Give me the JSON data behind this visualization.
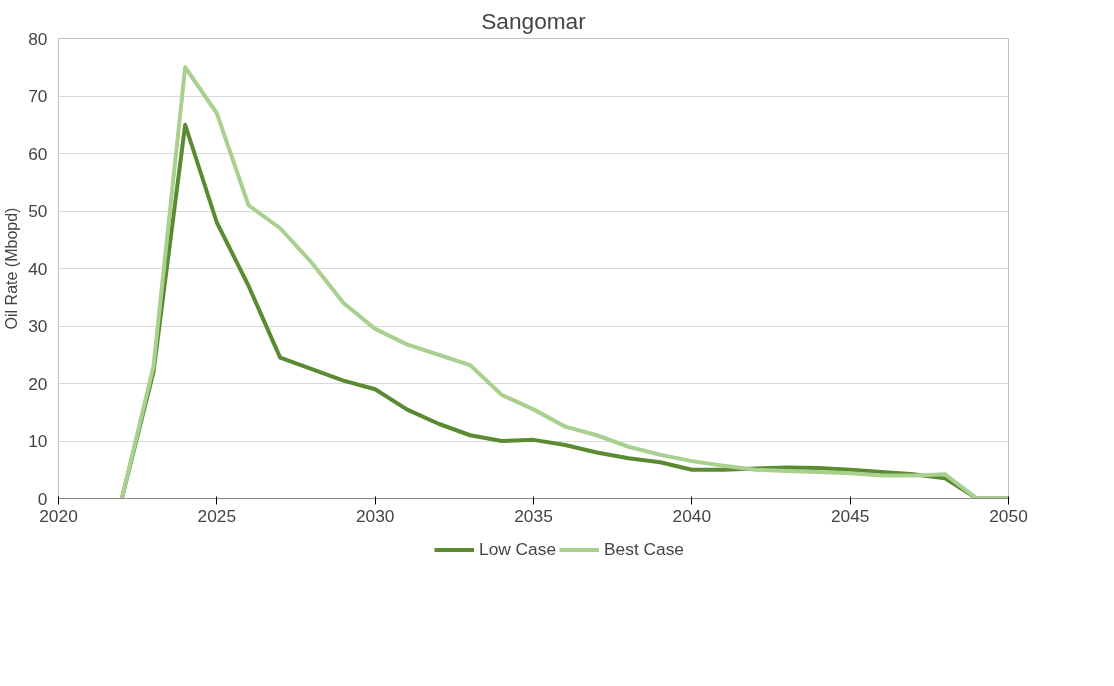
{
  "chart_data": {
    "type": "line",
    "title": "Sangomar",
    "ylabel": "Oil Rate (Mbopd)",
    "x": [
      2022,
      2023,
      2024,
      2025,
      2026,
      2027,
      2028,
      2029,
      2030,
      2031,
      2032,
      2033,
      2034,
      2035,
      2036,
      2037,
      2038,
      2039,
      2040,
      2041,
      2042,
      2043,
      2044,
      2045,
      2046,
      2047,
      2048,
      2049,
      2050
    ],
    "series": [
      {
        "name": "Low Case",
        "color": "#5a8a32",
        "values": [
          0,
          22,
          65,
          48,
          37,
          24.5,
          22.5,
          20.5,
          19,
          15.5,
          13,
          11,
          10,
          10.2,
          9.3,
          8,
          7,
          6.3,
          5,
          5,
          5.2,
          5.4,
          5.3,
          5,
          4.6,
          4.2,
          3.5,
          0,
          0
        ]
      },
      {
        "name": "Best Case",
        "color": "#a9d08e",
        "values": [
          0,
          23,
          75,
          67,
          51,
          47,
          41,
          34,
          29.5,
          26.8,
          25,
          23.2,
          18,
          15.5,
          12.5,
          11,
          9,
          7.6,
          6.5,
          5.7,
          5,
          4.8,
          4.6,
          4.4,
          4,
          4,
          4.2,
          0,
          0
        ]
      }
    ],
    "xlim": [
      2020,
      2050
    ],
    "xticks": [
      2020,
      2025,
      2030,
      2035,
      2040,
      2045,
      2050
    ],
    "ylim": [
      0,
      80
    ],
    "yticks": [
      0,
      10,
      20,
      30,
      40,
      50,
      60,
      70,
      80
    ],
    "grid": "y",
    "legend": "bottom",
    "marker": "none",
    "line_style": "solid"
  }
}
